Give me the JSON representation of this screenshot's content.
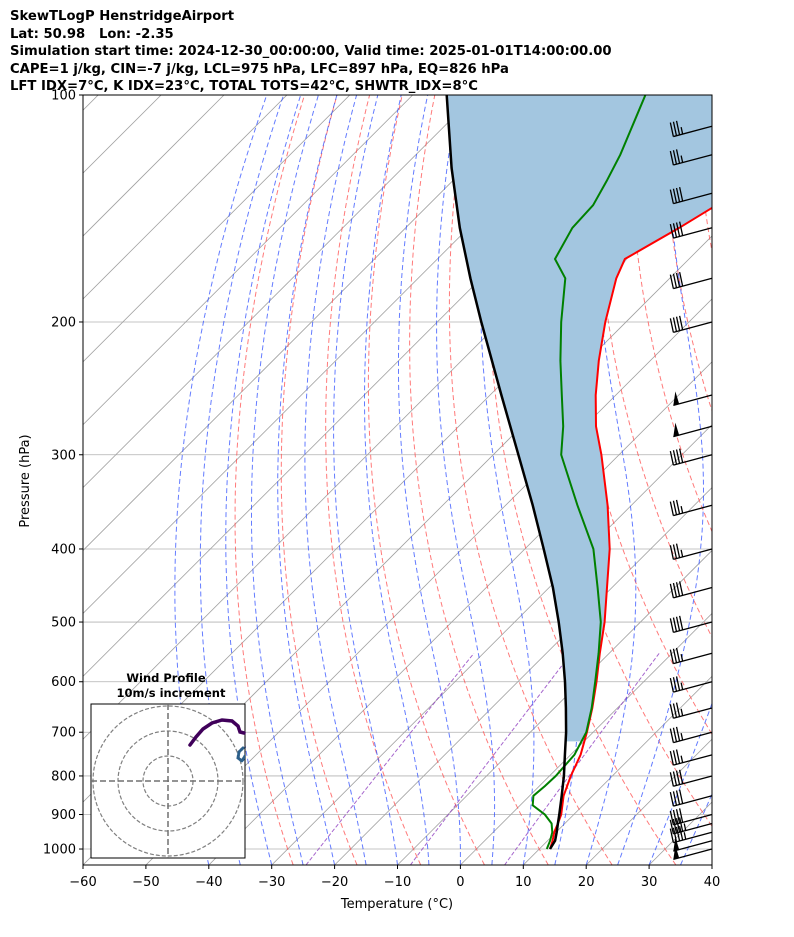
{
  "header": {
    "line1": "SkewTLogP HenstridgeAirport",
    "line2": "Lat: 50.98   Lon: -2.35",
    "line3": "Simulation start time: 2024-12-30_00:00:00, Valid time: 2025-01-01T14:00:00.00",
    "line4": "CAPE=1 j/kg, CIN=-7 j/kg, LCL=975 hPa, LFC=897 hPa, EQ=826 hPa",
    "line5": "LFT IDX=7°C, K IDX=23°C, TOTAL TOTS=42°C, SHWTR_IDX=8°C"
  },
  "chart_data": {
    "type": "line",
    "subtype": "skew-t log-p diagram",
    "xlabel": "Temperature (°C)",
    "ylabel": "Pressure (hPa)",
    "xlim": [
      -60,
      40
    ],
    "ylim": [
      1050,
      100
    ],
    "y_scale": "log",
    "x_ticks": [
      -60,
      -50,
      -40,
      -30,
      -20,
      -10,
      0,
      10,
      20,
      30,
      40
    ],
    "x_tick_labels": [
      "−60",
      "−50",
      "−40",
      "−30",
      "−20",
      "−10",
      "0",
      "10",
      "20",
      "30",
      "40"
    ],
    "y_ticks": [
      1000,
      900,
      800,
      700,
      600,
      500,
      400,
      300,
      200,
      100
    ],
    "y_tick_labels": [
      "1000",
      "900",
      "800",
      "700",
      "600",
      "500",
      "400",
      "300",
      "200",
      "100"
    ],
    "grid": true,
    "colors": {
      "temperature": "#ff0000",
      "dewpoint": "#008000",
      "parcel": "#000000",
      "cape_fill": "#a3c6e0",
      "dry_adiabat": "#ff4d4d",
      "moist_adiabat": "#3050ff",
      "isotherm": "#a0a0a0",
      "mixing_ratio": "#9040c0"
    },
    "series": [
      {
        "role": "temperature",
        "p": [
          1000,
          975,
          950,
          925,
          900,
          850,
          800,
          750,
          700,
          650,
          600,
          550,
          500,
          450,
          400,
          350,
          300,
          275,
          250,
          225,
          200,
          175,
          165,
          150,
          135,
          120,
          100
        ],
        "t": [
          11.7,
          10.8,
          9.7,
          8.9,
          8.0,
          5.4,
          3.4,
          1.6,
          -1.0,
          -4.0,
          -7.5,
          -11.5,
          -15.7,
          -20.8,
          -26.5,
          -33.8,
          -42.8,
          -48.2,
          -53.2,
          -58.2,
          -63.3,
          -68.5,
          -70.2,
          -66.5,
          -63.0,
          -57.5,
          -53.0
        ]
      },
      {
        "role": "dewpoint",
        "p": [
          1000,
          975,
          950,
          925,
          900,
          875,
          850,
          825,
          800,
          750,
          700,
          650,
          600,
          550,
          500,
          450,
          400,
          350,
          300,
          275,
          250,
          225,
          200,
          175,
          165,
          150,
          140,
          130,
          120,
          100
        ],
        "t": [
          11.2,
          10.4,
          9.4,
          7.9,
          5.4,
          2.0,
          0.6,
          0.9,
          1.0,
          0.6,
          -1.1,
          -4.1,
          -7.7,
          -11.7,
          -16.3,
          -22.3,
          -29.1,
          -38.6,
          -49.2,
          -53.4,
          -58.6,
          -64.3,
          -70.3,
          -76.6,
          -81.3,
          -83.5,
          -83.8,
          -85.5,
          -87.5,
          -93.0
        ]
      },
      {
        "role": "parcel",
        "p": [
          1000,
          975,
          950,
          925,
          900,
          850,
          800,
          750,
          700,
          650,
          600,
          550,
          500,
          450,
          400,
          350,
          300,
          250,
          200,
          175,
          150,
          125,
          100
        ],
        "t": [
          11.7,
          11.2,
          10.1,
          8.9,
          7.7,
          5.1,
          2.3,
          -0.9,
          -4.3,
          -8.2,
          -12.5,
          -17.4,
          -23.0,
          -29.4,
          -37.0,
          -45.7,
          -56.0,
          -68.2,
          -83.0,
          -91.7,
          -101.4,
          -112.2,
          -124.6
        ]
      }
    ],
    "wind_barbs": [
      {
        "p": 1000,
        "speed_kt": 50
      },
      {
        "p": 975,
        "speed_kt": 50
      },
      {
        "p": 950,
        "speed_kt": 45
      },
      {
        "p": 925,
        "speed_kt": 45
      },
      {
        "p": 900,
        "speed_kt": 40
      },
      {
        "p": 850,
        "speed_kt": 40
      },
      {
        "p": 800,
        "speed_kt": 40
      },
      {
        "p": 750,
        "speed_kt": 35
      },
      {
        "p": 700,
        "speed_kt": 35
      },
      {
        "p": 650,
        "speed_kt": 35
      },
      {
        "p": 600,
        "speed_kt": 35
      },
      {
        "p": 550,
        "speed_kt": 35
      },
      {
        "p": 500,
        "speed_kt": 40
      },
      {
        "p": 450,
        "speed_kt": 40
      },
      {
        "p": 400,
        "speed_kt": 35
      },
      {
        "p": 350,
        "speed_kt": 35
      },
      {
        "p": 300,
        "speed_kt": 40
      },
      {
        "p": 275,
        "speed_kt": 50
      },
      {
        "p": 250,
        "speed_kt": 50
      },
      {
        "p": 200,
        "speed_kt": 40
      },
      {
        "p": 175,
        "speed_kt": 40
      },
      {
        "p": 150,
        "speed_kt": 40
      },
      {
        "p": 135,
        "speed_kt": 40
      },
      {
        "p": 120,
        "speed_kt": 35
      },
      {
        "p": 110,
        "speed_kt": 35
      }
    ],
    "inset": {
      "title": "Wind Profile",
      "subtitle": "10m/s increment",
      "rings": 3,
      "hodograph_colors": [
        "#40005a",
        "#2c5f8a"
      ]
    }
  }
}
